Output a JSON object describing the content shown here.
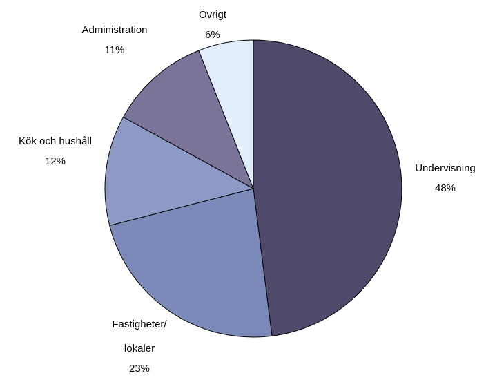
{
  "chart_data": {
    "type": "pie",
    "categories": [
      "Undervisning",
      "Fastigheter/lokaler",
      "Kök och hushåll",
      "Administration",
      "Övrigt"
    ],
    "values": [
      48,
      23,
      12,
      11,
      6
    ],
    "value_labels": [
      "48%",
      "23%",
      "12%",
      "11%",
      "6%"
    ],
    "colors": [
      "#4f4a6a",
      "#7b8ab8",
      "#8e9ac6",
      "#7a7499",
      "#e2eefa"
    ]
  }
}
